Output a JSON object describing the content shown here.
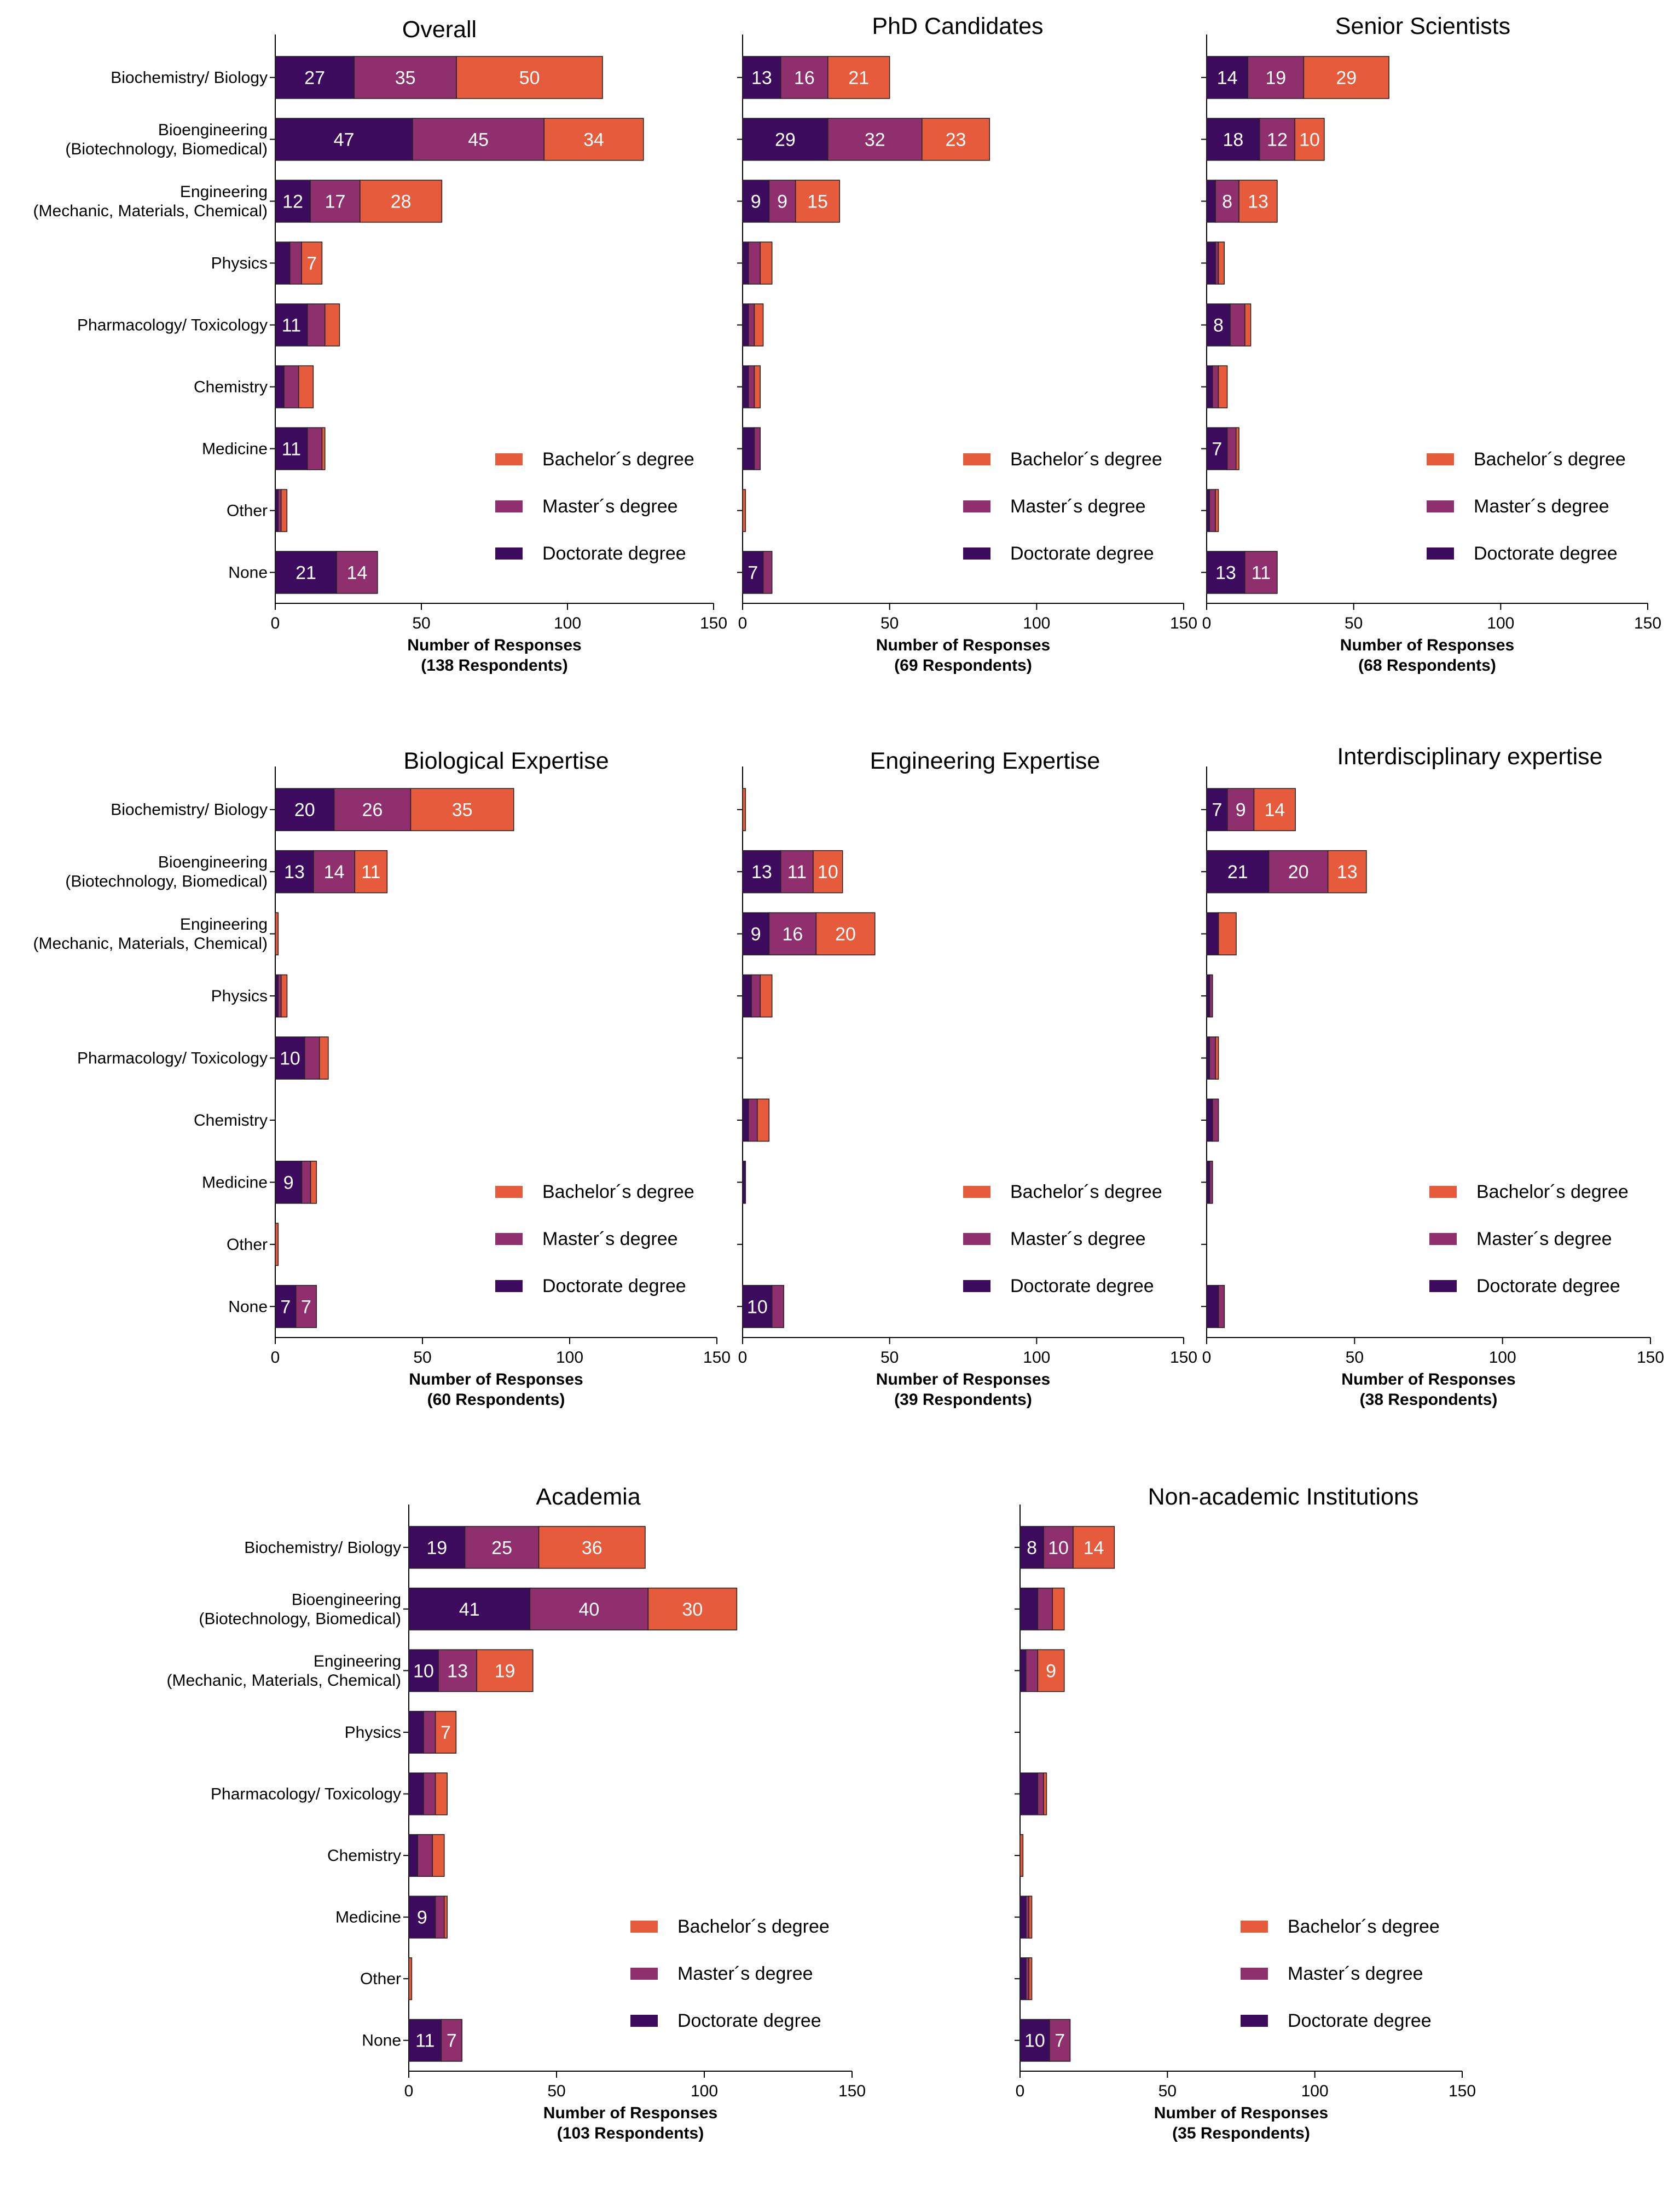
{
  "colors": {
    "Doctorate degree": "#3d0b5e",
    "Master´s degree": "#8f2f6e",
    "Bachelor´s degree": "#e55b3c"
  },
  "chart_data": [
    {
      "type": "bar",
      "title": "Overall",
      "xlabel": "Number of Responses",
      "xlabel2": "(138 Respondents)",
      "xlim": [
        0,
        150
      ],
      "xticks": [
        0,
        50,
        100,
        150
      ],
      "categories": [
        "Biochemistry/ Biology",
        "Bioengineering\n(Biotechnology, Biomedical)",
        "Engineering\n(Mechanic, Materials, Chemical)",
        "Physics",
        "Pharmacology/ Toxicology",
        "Chemistry",
        "Medicine",
        "Other",
        "None"
      ],
      "series": [
        {
          "name": "Doctorate degree",
          "values": [
            27,
            47,
            12,
            5,
            11,
            3,
            11,
            1,
            21
          ]
        },
        {
          "name": "Master´s degree",
          "values": [
            35,
            45,
            17,
            4,
            6,
            5,
            5,
            1,
            14
          ]
        },
        {
          "name": "Bachelor´s degree",
          "values": [
            50,
            34,
            28,
            7,
            5,
            5,
            1,
            2,
            0
          ]
        }
      ],
      "legend": [
        "Bachelor´s degree",
        "Master´s degree",
        "Doctorate degree"
      ]
    },
    {
      "type": "bar",
      "title": "PhD Candidates",
      "xlabel": "Number of Responses",
      "xlabel2": "(69 Respondents)",
      "xlim": [
        0,
        150
      ],
      "xticks": [
        0,
        50,
        100,
        150
      ],
      "categories": [
        "Biochemistry/ Biology",
        "Bioengineering\n(Biotechnology, Biomedical)",
        "Engineering\n(Mechanic, Materials, Chemical)",
        "Physics",
        "Pharmacology/ Toxicology",
        "Chemistry",
        "Medicine",
        "Other",
        "None"
      ],
      "series": [
        {
          "name": "Doctorate degree",
          "values": [
            13,
            29,
            9,
            2,
            2,
            2,
            4,
            0,
            7
          ]
        },
        {
          "name": "Master´s degree",
          "values": [
            16,
            32,
            9,
            4,
            2,
            2,
            2,
            0,
            3
          ]
        },
        {
          "name": "Bachelor´s degree",
          "values": [
            21,
            23,
            15,
            4,
            3,
            2,
            0,
            1,
            0
          ]
        }
      ],
      "legend": [
        "Bachelor´s degree",
        "Master´s degree",
        "Doctorate degree"
      ]
    },
    {
      "type": "bar",
      "title": "Senior Scientists",
      "xlabel": "Number of Responses",
      "xlabel2": "(68 Respondents)",
      "xlim": [
        0,
        150
      ],
      "xticks": [
        0,
        50,
        100,
        150
      ],
      "categories": [
        "Biochemistry/ Biology",
        "Bioengineering\n(Biotechnology, Biomedical)",
        "Engineering\n(Mechanic, Materials, Chemical)",
        "Physics",
        "Pharmacology/ Toxicology",
        "Chemistry",
        "Medicine",
        "Other",
        "None"
      ],
      "series": [
        {
          "name": "Doctorate degree",
          "values": [
            14,
            18,
            3,
            3,
            8,
            2,
            7,
            1,
            13
          ]
        },
        {
          "name": "Master´s degree",
          "values": [
            19,
            12,
            8,
            1,
            5,
            2,
            3,
            2,
            11
          ]
        },
        {
          "name": "Bachelor´s degree",
          "values": [
            29,
            10,
            13,
            2,
            2,
            3,
            1,
            1,
            0
          ]
        }
      ],
      "legend": [
        "Bachelor´s degree",
        "Master´s degree",
        "Doctorate degree"
      ]
    },
    {
      "type": "bar",
      "title": "Biological Expertise",
      "xlabel": "Number of Responses",
      "xlabel2": "(60 Respondents)",
      "xlim": [
        0,
        150
      ],
      "xticks": [
        0,
        50,
        100,
        150
      ],
      "categories": [
        "Biochemistry/ Biology",
        "Bioengineering\n(Biotechnology, Biomedical)",
        "Engineering\n(Mechanic, Materials, Chemical)",
        "Physics",
        "Pharmacology/ Toxicology",
        "Chemistry",
        "Medicine",
        "Other",
        "None"
      ],
      "series": [
        {
          "name": "Doctorate degree",
          "values": [
            20,
            13,
            0,
            1,
            10,
            0,
            9,
            0,
            7
          ]
        },
        {
          "name": "Master´s degree",
          "values": [
            26,
            14,
            0,
            1,
            5,
            0,
            3,
            0,
            7
          ]
        },
        {
          "name": "Bachelor´s degree",
          "values": [
            35,
            11,
            1,
            2,
            3,
            0,
            2,
            1,
            0
          ]
        }
      ],
      "legend": [
        "Bachelor´s degree",
        "Master´s degree",
        "Doctorate degree"
      ]
    },
    {
      "type": "bar",
      "title": "Engineering Expertise",
      "xlabel": "Number of Responses",
      "xlabel2": "(39 Respondents)",
      "xlim": [
        0,
        150
      ],
      "xticks": [
        0,
        50,
        100,
        150
      ],
      "categories": [
        "Biochemistry/ Biology",
        "Bioengineering\n(Biotechnology, Biomedical)",
        "Engineering\n(Mechanic, Materials, Chemical)",
        "Physics",
        "Pharmacology/ Toxicology",
        "Chemistry",
        "Medicine",
        "Other",
        "None"
      ],
      "series": [
        {
          "name": "Doctorate degree",
          "values": [
            0,
            13,
            9,
            3,
            0,
            2,
            1,
            0,
            10
          ]
        },
        {
          "name": "Master´s degree",
          "values": [
            0,
            11,
            16,
            3,
            0,
            3,
            0,
            0,
            4
          ]
        },
        {
          "name": "Bachelor´s degree",
          "values": [
            1,
            10,
            20,
            4,
            0,
            4,
            0,
            0,
            0
          ]
        }
      ],
      "legend": [
        "Bachelor´s degree",
        "Master´s degree",
        "Doctorate degree"
      ]
    },
    {
      "type": "bar",
      "title": "Interdisciplinary expertise",
      "xlabel": "Number of Responses",
      "xlabel2": "(38 Respondents)",
      "xlim": [
        0,
        150
      ],
      "xticks": [
        0,
        50,
        100,
        150
      ],
      "categories": [
        "Biochemistry/ Biology",
        "Bioengineering\n(Biotechnology, Biomedical)",
        "Engineering\n(Mechanic, Materials, Chemical)",
        "Physics",
        "Pharmacology/ Toxicology",
        "Chemistry",
        "Medicine",
        "Other",
        "None"
      ],
      "series": [
        {
          "name": "Doctorate degree",
          "values": [
            7,
            21,
            4,
            1,
            1,
            2,
            1,
            0,
            4
          ]
        },
        {
          "name": "Master´s degree",
          "values": [
            9,
            20,
            0,
            1,
            2,
            2,
            1,
            0,
            2
          ]
        },
        {
          "name": "Bachelor´s degree",
          "values": [
            14,
            13,
            6,
            0,
            1,
            0,
            0,
            0,
            0
          ]
        }
      ],
      "legend": [
        "Bachelor´s degree",
        "Master´s degree",
        "Doctorate degree"
      ]
    },
    {
      "type": "bar",
      "title": "Academia",
      "xlabel": "Number of Responses",
      "xlabel2": "(103 Respondents)",
      "xlim": [
        0,
        150
      ],
      "xticks": [
        0,
        50,
        100,
        150
      ],
      "categories": [
        "Biochemistry/ Biology",
        "Bioengineering\n(Biotechnology, Biomedical)",
        "Engineering\n(Mechanic, Materials, Chemical)",
        "Physics",
        "Pharmacology/ Toxicology",
        "Chemistry",
        "Medicine",
        "Other",
        "None"
      ],
      "series": [
        {
          "name": "Doctorate degree",
          "values": [
            19,
            41,
            10,
            5,
            5,
            3,
            9,
            0,
            11
          ]
        },
        {
          "name": "Master´s degree",
          "values": [
            25,
            40,
            13,
            4,
            4,
            5,
            3,
            0,
            7
          ]
        },
        {
          "name": "Bachelor´s degree",
          "values": [
            36,
            30,
            19,
            7,
            4,
            4,
            1,
            1,
            0
          ]
        }
      ],
      "legend": [
        "Bachelor´s degree",
        "Master´s degree",
        "Doctorate degree"
      ]
    },
    {
      "type": "bar",
      "title": "Non-academic Institutions",
      "xlabel": "Number of Responses",
      "xlabel2": "(35 Respondents)",
      "xlim": [
        0,
        150
      ],
      "xticks": [
        0,
        50,
        100,
        150
      ],
      "categories": [
        "Biochemistry/ Biology",
        "Bioengineering\n(Biotechnology, Biomedical)",
        "Engineering\n(Mechanic, Materials, Chemical)",
        "Physics",
        "Pharmacology/ Toxicology",
        "Chemistry",
        "Medicine",
        "Other",
        "None"
      ],
      "series": [
        {
          "name": "Doctorate degree",
          "values": [
            8,
            6,
            2,
            0,
            6,
            0,
            2,
            2,
            10
          ]
        },
        {
          "name": "Master´s degree",
          "values": [
            10,
            5,
            4,
            0,
            2,
            0,
            1,
            1,
            7
          ]
        },
        {
          "name": "Bachelor´s degree",
          "values": [
            14,
            4,
            9,
            0,
            1,
            1,
            1,
            1,
            0
          ]
        }
      ],
      "legend": [
        "Bachelor´s degree",
        "Master´s degree",
        "Doctorate degree"
      ]
    }
  ]
}
